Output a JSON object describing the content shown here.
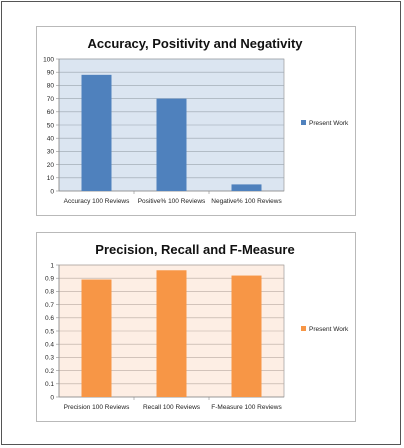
{
  "chart_data": [
    {
      "type": "bar",
      "title": "Accuracy, Positivity and Negativity",
      "categories": [
        "Accuracy 100 Reviews",
        "Positive% 100 Reviews",
        "Negative% 100 Reviews"
      ],
      "series": [
        {
          "name": "Present Work",
          "values": [
            88,
            70,
            5
          ]
        }
      ],
      "ylim": [
        0,
        100
      ],
      "yticks": [
        "0",
        "10",
        "20",
        "30",
        "40",
        "50",
        "60",
        "70",
        "80",
        "90",
        "100"
      ],
      "grid": true,
      "legend": "right",
      "colors": {
        "bar": "#4f81bd",
        "plot_bg": "#dbe5f1",
        "grid": "#9aa3ad"
      }
    },
    {
      "type": "bar",
      "title": "Precision, Recall and F-Measure",
      "categories": [
        "Precision 100 Reviews",
        "Recall 100 Reviews",
        "F-Measure 100 Reviews"
      ],
      "series": [
        {
          "name": "Present Work",
          "values": [
            0.89,
            0.96,
            0.92
          ]
        }
      ],
      "ylim": [
        0,
        1
      ],
      "yticks": [
        "0",
        "0.1",
        "0.2",
        "0.3",
        "0.4",
        "0.5",
        "0.6",
        "0.7",
        "0.8",
        "0.9",
        "1"
      ],
      "grid": true,
      "legend": "right",
      "colors": {
        "bar": "#f79646",
        "plot_bg": "#fdeee4",
        "grid": "#b7a9a0"
      }
    }
  ]
}
